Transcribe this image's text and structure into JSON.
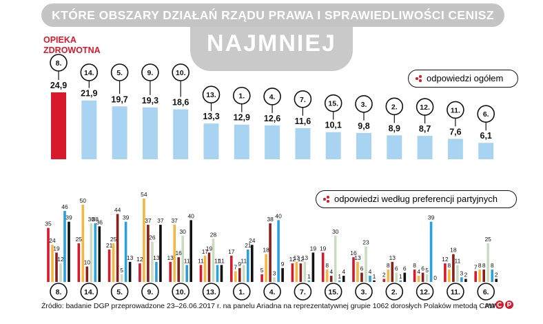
{
  "title": "KTÓRE OBSZARY DZIAŁAŃ RZĄDU PRAWA I SPRAWIEDLIWOŚCI CENISZ",
  "subtitle": "NAJMNIEJ",
  "highlight_label_line1": "OPIEKA",
  "highlight_label_line2": "ZDROWOTNA",
  "legend_total": "odpowiedzi ogółem",
  "legend_party": "odpowiedzi według preferencji partyjnych",
  "footer": "Źródło: badanie DGP przeprowadzone 23–26.06.2017 r. na panelu Ariadna na reprezentatywnej grupie 1062 dorosłych Polaków metodą CAWI",
  "signature": "RM",
  "colors": {
    "accent_red": "#d8182b",
    "total_bar": "#a9d4f1",
    "title_bg": "#c4c4c4",
    "party_series": [
      "#d8182b",
      "#f5b642",
      "#8a1f1a",
      "#c9dcc0",
      "#2aa0dc",
      "#111111"
    ]
  },
  "chart_data": [
    {
      "type": "bar",
      "name": "odpowiedzi ogółem",
      "categories": [
        "8.",
        "14.",
        "5.",
        "9.",
        "10.",
        "13.",
        "1.",
        "4.",
        "7.",
        "15.",
        "3.",
        "2.",
        "12.",
        "11.",
        "6."
      ],
      "values": [
        24.9,
        21.9,
        19.7,
        19.3,
        18.6,
        13.3,
        12.9,
        12.6,
        11.6,
        10.1,
        9.8,
        8.9,
        8.7,
        7.6,
        6.1
      ],
      "value_labels": [
        "24,9",
        "21,9",
        "19,7",
        "19,3",
        "18,6",
        "13,3",
        "12,9",
        "12,6",
        "11,6",
        "10,1",
        "9,8",
        "8,9",
        "8,7",
        "7,6",
        "6,1"
      ],
      "highlight_index": 0
    },
    {
      "type": "bar",
      "name": "odpowiedzi według preferencji partyjnych",
      "categories": [
        "8.",
        "14.",
        "5.",
        "9.",
        "10.",
        "13.",
        "1.",
        "4.",
        "7.",
        "15.",
        "3.",
        "2.",
        "12.",
        "11.",
        "6."
      ],
      "series_colors": [
        "#d8182b",
        "#f5b642",
        "#8a1f1a",
        "#c9dcc0",
        "#2aa0dc",
        "#111111"
      ],
      "groups": [
        [
          35,
          24,
          19,
          12,
          46,
          39
        ],
        [
          25,
          50,
          10,
          38,
          38,
          36
        ],
        [
          21,
          25,
          44,
          5,
          39,
          13
        ],
        [
          12,
          54,
          37,
          26,
          13,
          37
        ],
        [
          13,
          37,
          16,
          30,
          11,
          40
        ],
        [
          11,
          17,
          19,
          28,
          11,
          11
        ],
        [
          17,
          7,
          9,
          11,
          21,
          24
        ],
        [
          5,
          18,
          38,
          3,
          40,
          9
        ],
        [
          12,
          13,
          12,
          13,
          1,
          19
        ],
        [
          19,
          8,
          4,
          30,
          1,
          4
        ],
        [
          16,
          13,
          6,
          23,
          4,
          1
        ],
        [
          2,
          8,
          13,
          6,
          1,
          6
        ],
        [
          8,
          4,
          6,
          5,
          39,
          0
        ],
        [
          12,
          8,
          18,
          11,
          3,
          2
        ],
        [
          7,
          8,
          8,
          25,
          8,
          2
        ]
      ]
    }
  ]
}
